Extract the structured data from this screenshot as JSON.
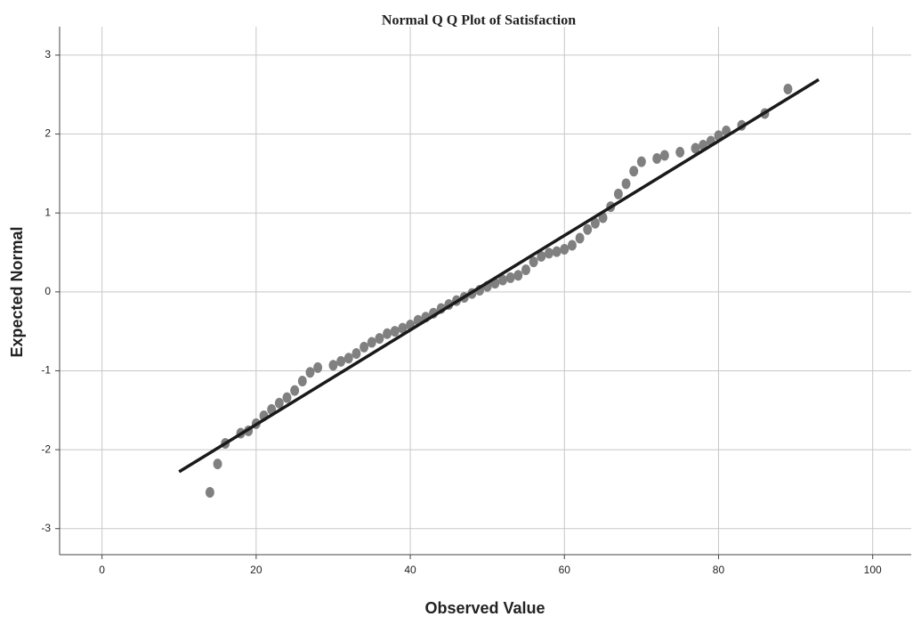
{
  "chart_data": {
    "type": "scatter",
    "title": "Normal Q Q Plot of Satisfaction",
    "x_label": "Observed Value",
    "y_label": "Expected Normal",
    "x": [
      14,
      15,
      16,
      18,
      19,
      20,
      21,
      22,
      23,
      24,
      25,
      26,
      27,
      28,
      30,
      31,
      32,
      33,
      34,
      35,
      36,
      37,
      38,
      39,
      40,
      41,
      42,
      43,
      44,
      45,
      46,
      47,
      48,
      49,
      50,
      51,
      52,
      53,
      54,
      55,
      56,
      57,
      58,
      59,
      60,
      61,
      62,
      63,
      64,
      65,
      66,
      67,
      68,
      69,
      70,
      72,
      73,
      75,
      77,
      78,
      79,
      80,
      81,
      83,
      86,
      89
    ],
    "values": [
      -2.54,
      -2.18,
      -1.92,
      -1.79,
      -1.76,
      -1.67,
      -1.57,
      -1.49,
      -1.41,
      -1.34,
      -1.25,
      -1.13,
      -1.02,
      -0.96,
      -0.93,
      -0.88,
      -0.84,
      -0.78,
      -0.7,
      -0.64,
      -0.59,
      -0.53,
      -0.5,
      -0.46,
      -0.42,
      -0.36,
      -0.32,
      -0.27,
      -0.21,
      -0.16,
      -0.11,
      -0.07,
      -0.02,
      0.02,
      0.07,
      0.11,
      0.15,
      0.18,
      0.21,
      0.28,
      0.38,
      0.45,
      0.49,
      0.51,
      0.54,
      0.59,
      0.68,
      0.79,
      0.87,
      0.94,
      1.08,
      1.24,
      1.37,
      1.53,
      1.65,
      1.69,
      1.73,
      1.77,
      1.82,
      1.86,
      1.91,
      1.98,
      2.04,
      2.11,
      2.26,
      2.57
    ],
    "color": "#808080",
    "fit_line": {
      "x": [
        10,
        93
      ],
      "values": [
        -2.28,
        2.69
      ],
      "color": "#1a1a1a"
    },
    "xlim": [
      -5.5,
      105
    ],
    "ylim": [
      -3.33,
      3.36
    ],
    "xticks": [
      0,
      20,
      40,
      60,
      80,
      100
    ],
    "yticks": [
      -3,
      -2,
      -1,
      0,
      1,
      2,
      3
    ],
    "grid": true
  }
}
